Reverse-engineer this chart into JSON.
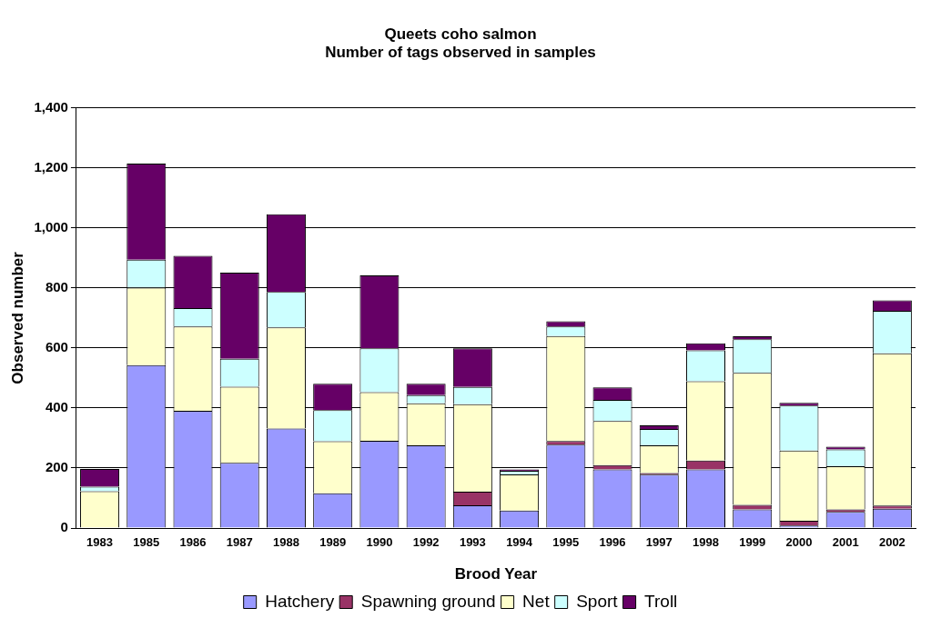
{
  "chart_data": {
    "type": "bar",
    "title": "Queets coho salmon",
    "subtitle": "Number of tags observed in samples",
    "xlabel": "Brood Year",
    "ylabel": "Observed number",
    "categories": [
      "1983",
      "1985",
      "1986",
      "1987",
      "1988",
      "1989",
      "1990",
      "1992",
      "1993",
      "1994",
      "1995",
      "1996",
      "1997",
      "1998",
      "1999",
      "2000",
      "2001",
      "2002"
    ],
    "stacked": true,
    "grid": "y",
    "legend": "bottom",
    "ylim": [
      0,
      1400
    ],
    "yticks": [
      0,
      200,
      400,
      600,
      800,
      {
        "value": 1000,
        "label": "1,000"
      },
      {
        "value": 1200,
        "label": "1,200"
      },
      {
        "value": 1400,
        "label": "1,400"
      }
    ],
    "series": [
      {
        "name": "Hatchery",
        "color": "#9999ff",
        "values": [
          null,
          543,
          391,
          217,
          332,
          116,
          291,
          276,
          76,
          58,
          278,
          195,
          178,
          195,
          62,
          8,
          54,
          64
        ]
      },
      {
        "name": "Spawning ground",
        "color": "#993366",
        "values": [
          0,
          null,
          0,
          0,
          0,
          0,
          0,
          0,
          45,
          null,
          12,
          15,
          5,
          30,
          15,
          16,
          8,
          11
        ]
      },
      {
        "name": "Net",
        "color": "#ffffcc",
        "values": [
          123,
          258,
          281,
          254,
          337,
          173,
          162,
          140,
          292,
          121,
          350,
          147,
          93,
          264,
          440,
          234,
          144,
          507
        ]
      },
      {
        "name": "Sport",
        "color": "#ccffff",
        "values": [
          15,
          93,
          61,
          93,
          118,
          104,
          146,
          27,
          57,
          12,
          32,
          70,
          54,
          103,
          112,
          150,
          56,
          142
        ]
      },
      {
        "name": "Troll",
        "color": "#660066",
        "values": [
          59,
          321,
          174,
          287,
          259,
          88,
          243,
          38,
          129,
          4,
          17,
          42,
          12,
          24,
          10,
          9,
          9,
          35
        ]
      }
    ]
  }
}
